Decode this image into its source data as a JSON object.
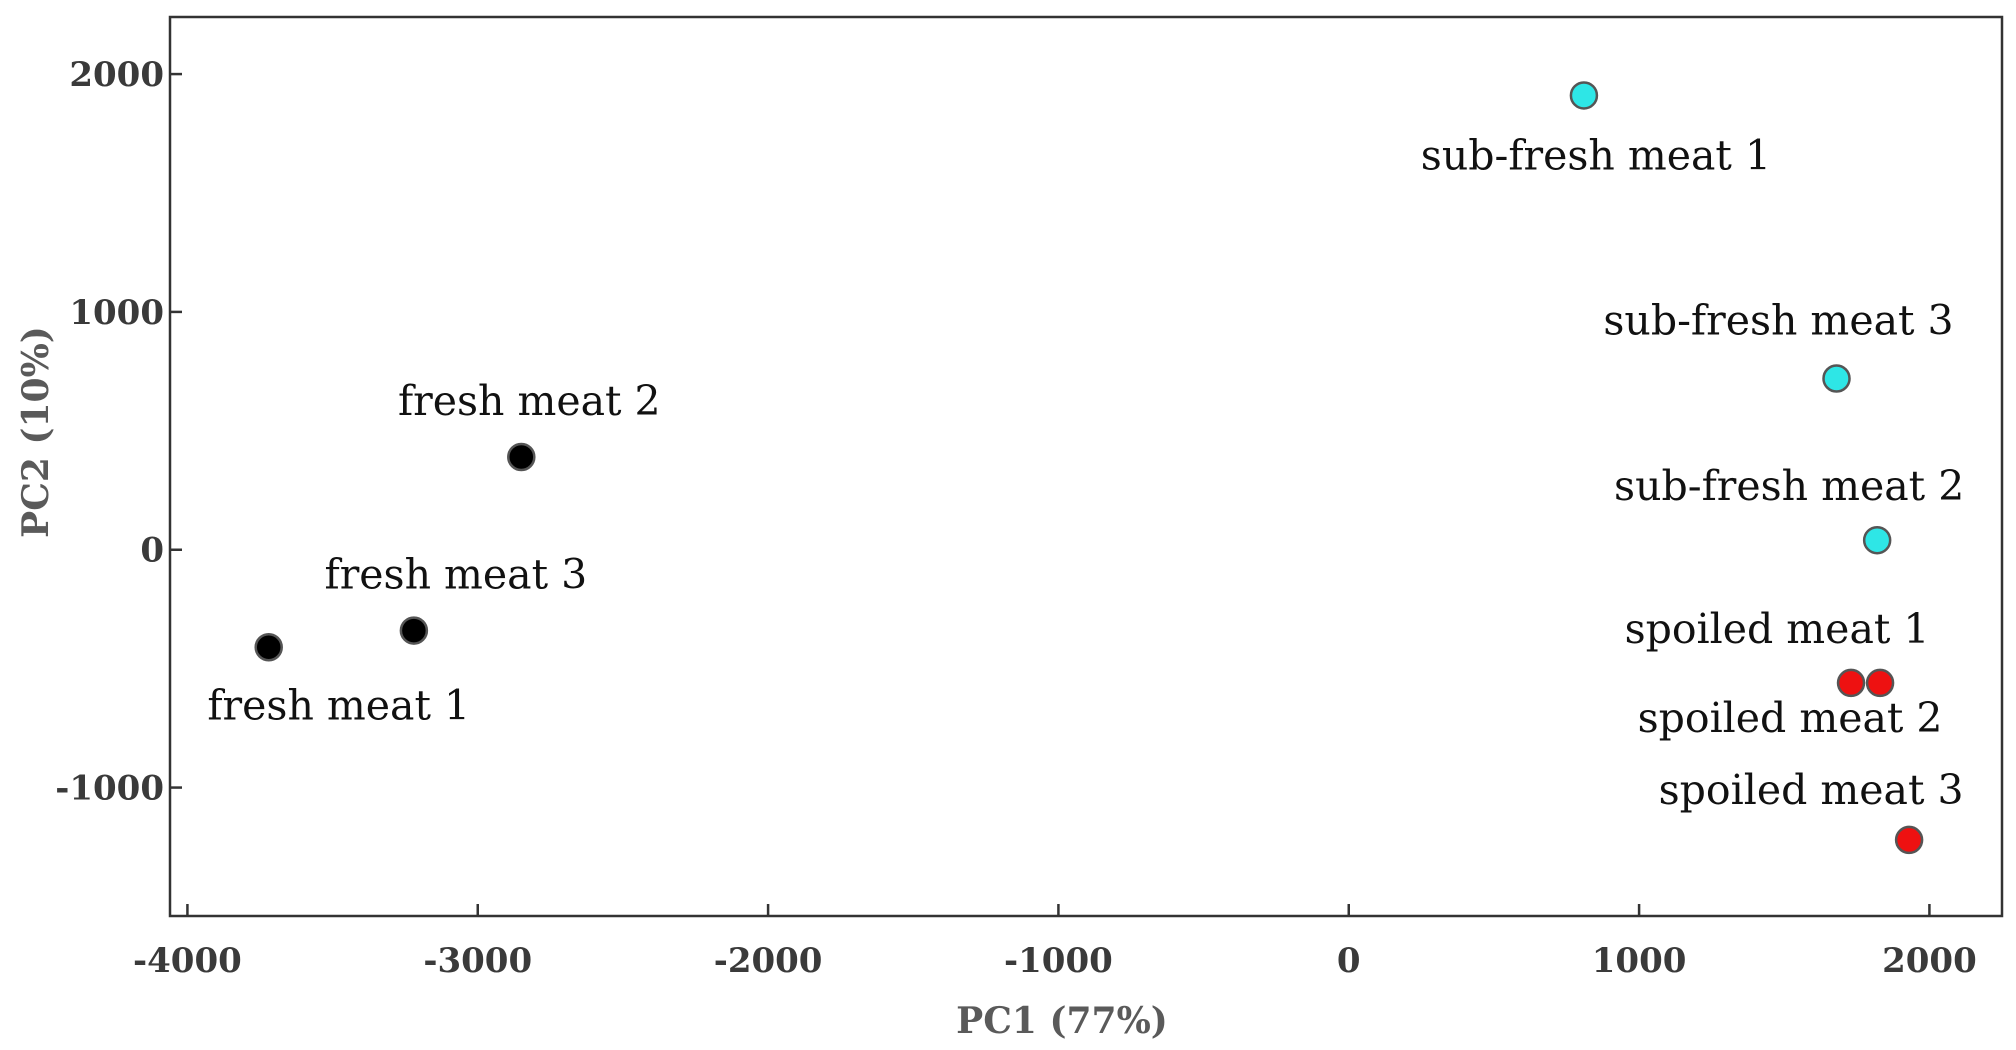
{
  "chart_data": {
    "type": "scatter",
    "xlabel": "PC1 (77%)",
    "ylabel": "PC2 (10%)",
    "xlim": [
      -4060,
      2250
    ],
    "ylim": [
      -1540,
      2240
    ],
    "xticks": [
      -4000,
      -3000,
      -2000,
      -1000,
      0,
      1000,
      2000
    ],
    "yticks": [
      -1000,
      0,
      1000,
      2000
    ],
    "grid": false,
    "colors": {
      "fresh": "#000000",
      "sub_fresh": "#2ee6e6",
      "spoiled": "#ee1111"
    },
    "points": [
      {
        "label": "fresh meat 1",
        "x": -3720,
        "y": -410,
        "group": "fresh"
      },
      {
        "label": "fresh meat 2",
        "x": -2850,
        "y": 390,
        "group": "fresh"
      },
      {
        "label": "fresh meat 3",
        "x": -3220,
        "y": -340,
        "group": "fresh"
      },
      {
        "label": "sub-fresh meat 1",
        "x": 810,
        "y": 1910,
        "group": "sub_fresh"
      },
      {
        "label": "sub-fresh meat 2",
        "x": 1820,
        "y": 40,
        "group": "sub_fresh"
      },
      {
        "label": "sub-fresh meat 3",
        "x": 1680,
        "y": 720,
        "group": "sub_fresh"
      },
      {
        "label": "spoiled meat 1",
        "x": 1730,
        "y": -560,
        "group": "spoiled"
      },
      {
        "label": "spoiled meat 2",
        "x": 1830,
        "y": -560,
        "group": "spoiled"
      },
      {
        "label": "spoiled meat 3",
        "x": 1930,
        "y": -1220,
        "group": "spoiled"
      }
    ]
  }
}
